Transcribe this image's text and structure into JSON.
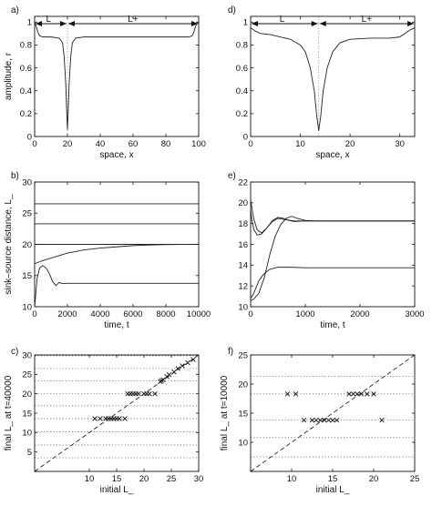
{
  "chart_data": [
    {
      "id": "a",
      "panel_label": "a)",
      "type": "line",
      "xlabel": "space, x",
      "ylabel": "amplitude, r",
      "xlim": [
        0,
        100
      ],
      "ylim": [
        0,
        1.05
      ],
      "xticks": [
        0,
        20,
        40,
        60,
        80,
        100
      ],
      "yticks": [
        0,
        0.2,
        0.4,
        0.6,
        0.8,
        1
      ],
      "ytick_labels": [
        "0",
        "0.2",
        "0.4",
        "0.6",
        "0.8",
        "1"
      ],
      "annotations": [
        "L_",
        "L+"
      ],
      "vline_dotted_x": 20,
      "series": [
        {
          "x": [
            0,
            1,
            2,
            3,
            5,
            10,
            15,
            17,
            18,
            19,
            19.6,
            20,
            20.4,
            21,
            22,
            23,
            25,
            30,
            50,
            80,
            94,
            96,
            97,
            98,
            99,
            100
          ],
          "y": [
            1.0,
            0.96,
            0.91,
            0.88,
            0.87,
            0.87,
            0.86,
            0.82,
            0.7,
            0.45,
            0.2,
            0.06,
            0.2,
            0.45,
            0.7,
            0.82,
            0.86,
            0.87,
            0.87,
            0.87,
            0.87,
            0.88,
            0.91,
            0.96,
            0.99,
            1.0
          ]
        }
      ]
    },
    {
      "id": "d",
      "panel_label": "d)",
      "type": "line",
      "xlabel": "space, x",
      "ylabel": "",
      "xlim": [
        0,
        33
      ],
      "ylim": [
        0,
        1.05
      ],
      "xticks": [
        0,
        10,
        20,
        30
      ],
      "yticks": [
        0,
        0.2,
        0.4,
        0.6,
        0.8,
        1
      ],
      "ytick_labels": [
        "0",
        "0.2",
        "0.4",
        "0.6",
        "0.8",
        "1"
      ],
      "annotations": [
        "L_",
        "L+"
      ],
      "vline_dotted_x": 13.7,
      "series": [
        {
          "x": [
            0,
            1,
            2,
            4,
            6,
            8,
            10,
            11,
            12,
            12.8,
            13.3,
            13.7,
            14.1,
            14.6,
            15.4,
            16.5,
            18,
            20,
            24,
            28,
            30,
            31,
            32,
            33
          ],
          "y": [
            0.95,
            0.92,
            0.9,
            0.89,
            0.87,
            0.85,
            0.8,
            0.74,
            0.6,
            0.4,
            0.18,
            0.05,
            0.18,
            0.4,
            0.6,
            0.74,
            0.82,
            0.85,
            0.86,
            0.86,
            0.87,
            0.9,
            0.93,
            0.95
          ]
        }
      ]
    },
    {
      "id": "b",
      "panel_label": "b)",
      "type": "line",
      "xlabel": "time, t",
      "ylabel": "sink–source distance, L_",
      "xlim": [
        0,
        10000
      ],
      "ylim": [
        10,
        30
      ],
      "xticks": [
        0,
        2000,
        4000,
        6000,
        8000,
        10000
      ],
      "yticks": [
        10,
        15,
        20,
        25,
        30
      ],
      "series": [
        {
          "x": [
            0,
            10000
          ],
          "y": [
            26.5,
            26.5
          ]
        },
        {
          "x": [
            0,
            10000
          ],
          "y": [
            23.3,
            23.3
          ]
        },
        {
          "x": [
            0,
            10000
          ],
          "y": [
            20.0,
            20.0
          ]
        },
        {
          "x": [
            0,
            200,
            500,
            1000,
            1500,
            2000,
            3000,
            4000,
            5000,
            6000,
            7000,
            8000,
            9000,
            10000
          ],
          "y": [
            16.9,
            17.1,
            17.4,
            17.8,
            18.2,
            18.6,
            19.1,
            19.4,
            19.6,
            19.8,
            19.9,
            19.95,
            20.0,
            20.0
          ]
        },
        {
          "x": [
            0,
            50,
            150,
            300,
            500,
            700,
            900,
            1100,
            1300,
            1500,
            1700,
            2000,
            2500,
            10000
          ],
          "y": [
            10.0,
            11.5,
            14.5,
            16.2,
            16.6,
            16.2,
            15.3,
            14.0,
            13.4,
            13.9,
            13.7,
            13.75,
            13.75,
            13.75
          ]
        }
      ]
    },
    {
      "id": "e",
      "panel_label": "e)",
      "type": "line",
      "xlabel": "time, t",
      "ylabel": "",
      "xlim": [
        0,
        3000
      ],
      "ylim": [
        10,
        22
      ],
      "xticks": [
        0,
        1000,
        2000,
        3000
      ],
      "yticks": [
        10,
        12,
        14,
        16,
        18,
        20,
        22
      ],
      "series": [
        {
          "x": [
            0,
            20,
            60,
            120,
            200,
            300,
            400,
            500,
            600,
            700,
            800,
            1000,
            1200,
            1500,
            3000
          ],
          "y": [
            20.3,
            19.6,
            18.4,
            17.4,
            17.1,
            17.6,
            18.3,
            18.6,
            18.5,
            18.3,
            18.2,
            18.25,
            18.25,
            18.25,
            18.25
          ]
        },
        {
          "x": [
            0,
            20,
            60,
            120,
            200,
            300,
            400,
            500,
            600,
            800,
            1000,
            1500,
            3000
          ],
          "y": [
            19.4,
            18.4,
            17.4,
            16.9,
            17.0,
            17.6,
            18.2,
            18.5,
            18.4,
            18.25,
            18.25,
            18.25,
            18.25
          ]
        },
        {
          "x": [
            0,
            50,
            150,
            250,
            350,
            450,
            550,
            650,
            750,
            850,
            1000,
            1200,
            1500,
            3000
          ],
          "y": [
            10.6,
            10.7,
            11.3,
            12.8,
            15.0,
            16.8,
            17.9,
            18.5,
            18.7,
            18.5,
            18.3,
            18.25,
            18.25,
            18.25
          ]
        },
        {
          "x": [
            0,
            50,
            150,
            250,
            350,
            500,
            700,
            1000,
            1500,
            3000
          ],
          "y": [
            10.8,
            11.2,
            12.5,
            13.2,
            13.6,
            13.8,
            13.8,
            13.75,
            13.75,
            13.75
          ]
        }
      ]
    },
    {
      "id": "c",
      "panel_label": "c)",
      "type": "scatter",
      "xlabel": "initial L_",
      "ylabel": "final L_ at t=40000",
      "xlim": [
        0,
        30
      ],
      "ylim": [
        0,
        30
      ],
      "xticks": [
        10,
        15,
        20,
        25,
        30
      ],
      "yticks": [
        0,
        5,
        10,
        15,
        20,
        25,
        30
      ],
      "ytick_labels": [
        "",
        "5",
        "10",
        "15",
        "20",
        "25",
        "30"
      ],
      "hlines_dotted": [
        3.5,
        6.8,
        10.2,
        13.6,
        16.9,
        20.0,
        23.3,
        26.5,
        29.8
      ],
      "diagonal_dashed": true,
      "marker": "x",
      "points": [
        [
          11,
          13.6
        ],
        [
          12,
          13.6
        ],
        [
          13,
          13.6
        ],
        [
          13.5,
          13.6
        ],
        [
          14,
          13.6
        ],
        [
          14.5,
          13.6
        ],
        [
          15,
          13.6
        ],
        [
          15.5,
          13.6
        ],
        [
          16.5,
          13.6
        ],
        [
          17,
          20.0
        ],
        [
          17.5,
          20.0
        ],
        [
          18,
          20.0
        ],
        [
          18.5,
          20.0
        ],
        [
          19,
          20.0
        ],
        [
          20,
          20.0
        ],
        [
          20.5,
          20.0
        ],
        [
          21,
          20.0
        ],
        [
          22,
          20.0
        ],
        [
          23,
          23.1
        ],
        [
          23.2,
          23.4
        ],
        [
          23.5,
          23.6
        ],
        [
          24.2,
          24.4
        ],
        [
          24.6,
          24.9
        ],
        [
          25.5,
          25.6
        ],
        [
          26.2,
          26.5
        ],
        [
          27,
          27.2
        ],
        [
          28,
          28.0
        ],
        [
          29,
          28.8
        ]
      ]
    },
    {
      "id": "f",
      "panel_label": "f)",
      "type": "scatter",
      "xlabel": "initial L_",
      "ylabel": "final L_ at t=10000",
      "xlim": [
        5,
        25
      ],
      "ylim": [
        5,
        25
      ],
      "xticks": [
        10,
        15,
        20,
        25
      ],
      "yticks": [
        5,
        10,
        15,
        20,
        25
      ],
      "ytick_labels": [
        "",
        "10",
        "15",
        "20",
        "25"
      ],
      "hlines_dotted": [
        7.5,
        10.8,
        13.8,
        18.3,
        21.3
      ],
      "diagonal_dashed": true,
      "marker": "x",
      "points": [
        [
          9.5,
          18.3
        ],
        [
          10.5,
          18.3
        ],
        [
          11.5,
          13.8
        ],
        [
          12.5,
          13.8
        ],
        [
          13,
          13.8
        ],
        [
          13.5,
          13.8
        ],
        [
          14,
          13.8
        ],
        [
          14.5,
          13.8
        ],
        [
          15,
          13.8
        ],
        [
          15.5,
          13.8
        ],
        [
          17,
          18.3
        ],
        [
          17.5,
          18.3
        ],
        [
          18,
          18.3
        ],
        [
          18.5,
          18.3
        ],
        [
          19.2,
          18.3
        ],
        [
          20,
          18.3
        ],
        [
          21,
          13.8
        ]
      ]
    }
  ]
}
